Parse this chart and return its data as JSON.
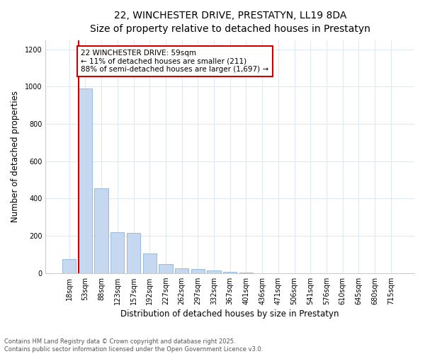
{
  "title": "22, WINCHESTER DRIVE, PRESTATYN, LL19 8DA",
  "subtitle": "Size of property relative to detached houses in Prestatyn",
  "xlabel": "Distribution of detached houses by size in Prestatyn",
  "ylabel": "Number of detached properties",
  "bar_labels": [
    "18sqm",
    "53sqm",
    "88sqm",
    "123sqm",
    "157sqm",
    "192sqm",
    "227sqm",
    "262sqm",
    "297sqm",
    "332sqm",
    "367sqm",
    "401sqm",
    "436sqm",
    "471sqm",
    "506sqm",
    "541sqm",
    "576sqm",
    "610sqm",
    "645sqm",
    "680sqm",
    "715sqm"
  ],
  "bar_values": [
    75,
    990,
    455,
    220,
    215,
    105,
    50,
    25,
    20,
    15,
    8,
    3,
    0,
    0,
    0,
    0,
    0,
    0,
    0,
    0,
    0
  ],
  "bar_color": "#c5d8f0",
  "bar_edgecolor": "#8ab4d8",
  "vline_x_index": 1,
  "vline_color": "#cc0000",
  "annotation_text": "22 WINCHESTER DRIVE: 59sqm\n← 11% of detached houses are smaller (211)\n88% of semi-detached houses are larger (1,697) →",
  "annotation_box_facecolor": "#ffffff",
  "annotation_box_edgecolor": "#cc0000",
  "ylim": [
    0,
    1250
  ],
  "yticks": [
    0,
    200,
    400,
    600,
    800,
    1000,
    1200
  ],
  "bg_color": "#ffffff",
  "plot_bg_color": "#ffffff",
  "grid_color": "#e0e8f0",
  "footer_text": "Contains HM Land Registry data © Crown copyright and database right 2025.\nContains public sector information licensed under the Open Government Licence v3.0.",
  "title_fontsize": 10,
  "xlabel_fontsize": 8.5,
  "ylabel_fontsize": 8.5,
  "tick_fontsize": 7,
  "annotation_fontsize": 7.5,
  "footer_fontsize": 6
}
